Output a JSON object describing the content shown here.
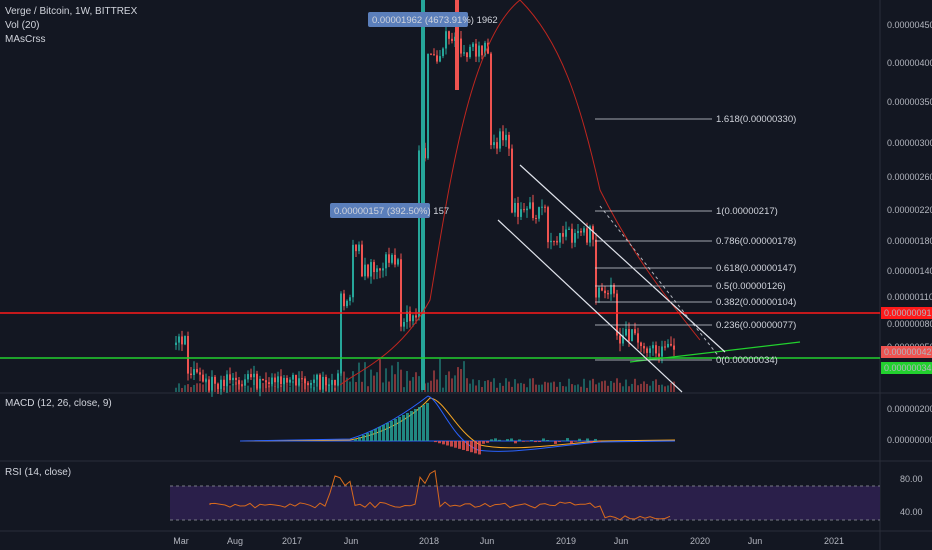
{
  "header": {
    "symbol": "Verge / Bitcoin, 1W, BITTREX",
    "ind1": "Vol (20)",
    "ind2": "MAsCrss",
    "macd_title": "MACD (12, 26, close, 9)",
    "rsi_title": "RSI (14, close)"
  },
  "colors": {
    "background": "#131722",
    "up": "#26a69a",
    "down": "#ef5350",
    "red_line": "#ff1a1a",
    "green_line": "#22d12e",
    "ma_red": "#c0261f",
    "rsi_line": "#d86a1d",
    "rsi_band": "#2a1f4a",
    "label_blue": "#5b7fbb"
  },
  "chart_data": [
    {
      "type": "candlestick",
      "pane": "price",
      "x_ticks": [
        "Mar",
        "Aug",
        "2017",
        "Jun",
        "2018",
        "Jun",
        "2019",
        "Jun",
        "2020",
        "Jun",
        "2021"
      ],
      "y_ticks": [
        "0.00000450",
        "0.00000400",
        "0.00000350",
        "0.00000300",
        "0.00000260",
        "0.00000220",
        "0.00000180",
        "0.00000140",
        "0.00000110",
        "0.00000080",
        "0.00000050"
      ],
      "horizontal_lines": [
        {
          "value": "0.00000091",
          "color": "red"
        },
        {
          "value": "0.00000034",
          "color": "green"
        }
      ],
      "price_tags": [
        {
          "text": "0.00000091",
          "color": "#ff1a1a"
        },
        {
          "text": "0.00000042",
          "color": "#ef5350"
        },
        {
          "text": "0.00000034",
          "color": "#22d12e"
        }
      ],
      "annotations": [
        "0.00001962 (4673.91%) 1962",
        "0.00000157 (392.50%) 157"
      ],
      "fib_levels": [
        "1.618(0.00000330)",
        "1(0.00000217)",
        "0.786(0.00000178)",
        "0.618(0.00000147)",
        "0.5(0.00000126)",
        "0.382(0.00000104)",
        "0.236(0.00000077)",
        "0(0.00000034)"
      ]
    },
    {
      "type": "line",
      "pane": "macd",
      "title": "MACD (12, 26, close, 9)",
      "y_ticks": [
        "0.00000200",
        "0.00000000"
      ]
    },
    {
      "type": "line",
      "pane": "rsi",
      "title": "RSI (14, close)",
      "y_ticks": [
        "80.00",
        "40.00"
      ],
      "bands": [
        70,
        30
      ]
    }
  ]
}
